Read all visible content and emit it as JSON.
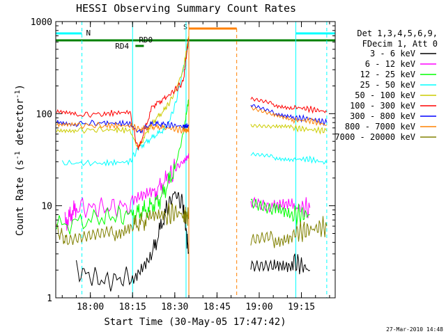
{
  "chart_data": {
    "type": "line",
    "title": "HESSI Observing Summary Count Rates",
    "xlabel": "Start Time (30-May-05 17:47:42)",
    "ylabel_main": "Count Rate (s",
    "ylabel_sup1": "-1",
    "ylabel_mid": " detector",
    "ylabel_sup2": "-1",
    "ylabel_end": ")",
    "yscale": "log",
    "ylim": [
      1,
      1000
    ],
    "xlim": [
      "17:47:42",
      "19:27:00"
    ],
    "x_ticks": [
      "18:00",
      "18:15",
      "18:30",
      "18:45",
      "19:00",
      "19:15"
    ],
    "y_ticks": [
      "1",
      "10",
      "100",
      "1000"
    ],
    "legend_header": [
      "Det 1,3,4,5,6,9,",
      "FDecim 1, Att 0"
    ],
    "series": [
      {
        "name": "3 - 6 keV",
        "color": "#000000",
        "x": [
          "17:55",
          "18:05",
          "18:15",
          "18:22",
          "18:27",
          "18:30",
          "18:33",
          "18:35",
          "18:57",
          "19:05",
          "19:12",
          "19:18"
        ],
        "values": [
          2.0,
          1.5,
          1.7,
          3.0,
          9.0,
          14.0,
          10.0,
          3.0,
          2.5,
          2.5,
          2.5,
          2.0
        ]
      },
      {
        "name": "6 - 12 keV",
        "color": "#ff00ff",
        "x": [
          "17:51",
          "17:55",
          "18:05",
          "18:15",
          "18:22",
          "18:27",
          "18:30",
          "18:33",
          "18:35",
          "18:57",
          "19:05",
          "19:12",
          "19:18"
        ],
        "values": [
          6.5,
          9.5,
          9.5,
          10.0,
          13.0,
          19.0,
          25.0,
          30.0,
          35.0,
          12.0,
          10.0,
          9.5,
          9.5
        ]
      },
      {
        "name": "12 - 25 keV",
        "color": "#00ff00",
        "x": [
          "17:48",
          "18:05",
          "18:15",
          "18:20",
          "18:25",
          "18:30",
          "18:33",
          "18:35",
          "18:57",
          "19:05",
          "19:12",
          "19:18"
        ],
        "values": [
          6.0,
          7.5,
          8.0,
          9.0,
          12.0,
          25.0,
          60.0,
          150.0,
          11.0,
          9.0,
          8.0,
          8.0
        ]
      },
      {
        "name": "25 - 50 keV",
        "color": "#00ffff",
        "x": [
          "17:50",
          "18:05",
          "18:14",
          "18:17",
          "18:22",
          "18:27",
          "18:30",
          "18:33",
          "18:35",
          "18:57",
          "19:05",
          "19:12",
          "19:18",
          "19:24"
        ],
        "values": [
          29.0,
          29.0,
          30.0,
          42.0,
          55.0,
          70.0,
          120.0,
          300.0,
          600.0,
          36.0,
          34.0,
          32.0,
          32.0,
          29.0
        ]
      },
      {
        "name": "50 - 100 keV",
        "color": "#cccc00",
        "x": [
          "17:48",
          "17:55",
          "18:05",
          "18:14",
          "18:17",
          "18:22",
          "18:27",
          "18:30",
          "18:33",
          "18:35",
          "18:57",
          "19:05",
          "19:12",
          "19:18",
          "19:24"
        ],
        "values": [
          68.0,
          66.0,
          67.0,
          66.0,
          42.0,
          80.0,
          115.0,
          170.0,
          300.0,
          700.0,
          72.0,
          70.0,
          70.0,
          67.0,
          65.0
        ]
      },
      {
        "name": "100 - 300 keV",
        "color": "#ff0000",
        "x": [
          "17:48",
          "17:55",
          "18:05",
          "18:14",
          "18:17",
          "18:22",
          "18:27",
          "18:30",
          "18:33",
          "18:35",
          "18:57",
          "19:05",
          "19:12",
          "19:18",
          "19:24"
        ],
        "values": [
          102.0,
          96.0,
          100.0,
          104.0,
          40.0,
          120.0,
          150.0,
          180.0,
          220.0,
          700.0,
          140.0,
          125.0,
          118.0,
          112.0,
          105.0
        ]
      },
      {
        "name": "300 - 800 keV",
        "color": "#0000ff",
        "x": [
          "17:48",
          "17:55",
          "18:05",
          "18:14",
          "18:17",
          "18:22",
          "18:27",
          "18:30",
          "18:33",
          "18:35",
          "18:57",
          "19:05",
          "19:12",
          "19:18",
          "19:24"
        ],
        "values": [
          83.0,
          78.0,
          79.0,
          78.0,
          63.0,
          78.0,
          76.0,
          74.0,
          73.0,
          73.0,
          120.0,
          100.0,
          90.0,
          88.0,
          80.0
        ]
      },
      {
        "name": "800 - 7000 keV",
        "color": "#ff8000",
        "x": [
          "17:48",
          "17:55",
          "18:05",
          "18:14",
          "18:17",
          "18:22",
          "18:27",
          "18:30",
          "18:33",
          "18:35",
          "18:57",
          "19:05",
          "19:12",
          "19:18",
          "19:24"
        ],
        "values": [
          76.0,
          75.0,
          74.0,
          74.0,
          68.0,
          72.0,
          70.0,
          68.0,
          66.0,
          66.0,
          112.0,
          95.0,
          85.0,
          84.0,
          75.0
        ]
      },
      {
        "name": "7000 - 20000 keV",
        "color": "#808000",
        "x": [
          "17:48",
          "17:52",
          "18:00",
          "18:08",
          "18:15",
          "18:20",
          "18:27",
          "18:30",
          "18:33",
          "18:35",
          "18:57",
          "19:05",
          "19:12",
          "19:18",
          "19:24"
        ],
        "values": [
          5.5,
          4.0,
          4.5,
          5.0,
          6.0,
          7.0,
          8.0,
          8.5,
          8.0,
          7.5,
          4.0,
          4.5,
          5.0,
          5.5,
          6.0
        ]
      }
    ],
    "flags": [
      {
        "label": "N",
        "color": "#00ffff"
      },
      {
        "label": "S",
        "color": "#00ffff"
      },
      {
        "label": "RD0",
        "color": "#008000"
      },
      {
        "label": "RD4",
        "color": "#008000"
      }
    ],
    "footer_timestamp": "27-Mar-2010 14:48"
  }
}
